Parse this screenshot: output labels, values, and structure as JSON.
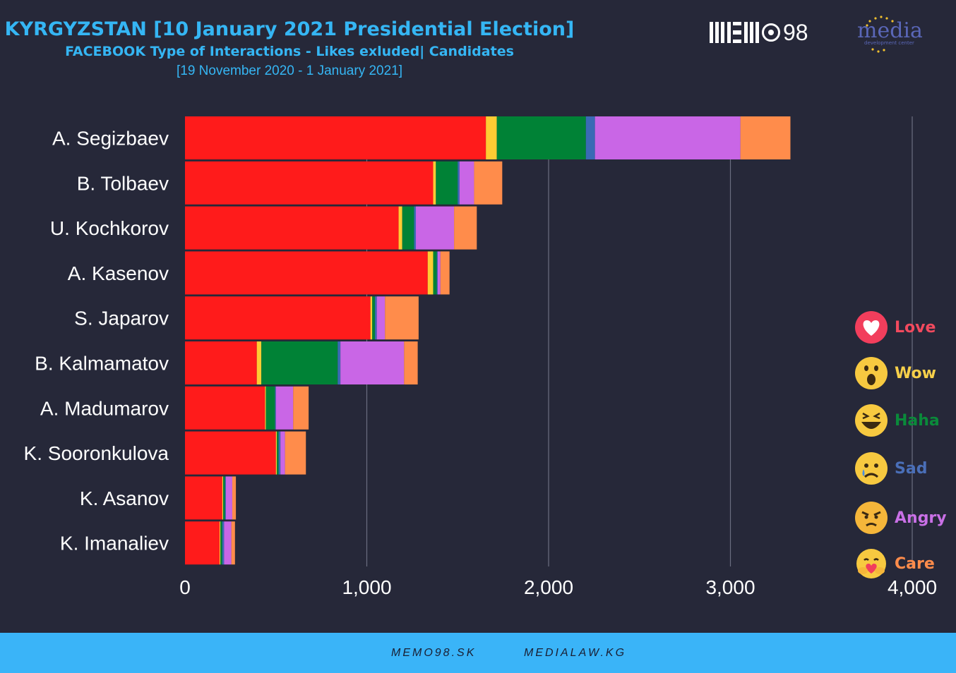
{
  "header": {
    "title": "KYRGYZSTAN [10 January 2021 Presidential Election]",
    "subtitle": "FACEBOOK Type of Interactions - Likes exluded| Candidates",
    "date_range": "[19 November 2020 - 1 January 2021]"
  },
  "logos": {
    "memo_text": "98",
    "media_text": "media",
    "media_sub": "development center"
  },
  "footer": {
    "link1": "MEMO98.SK",
    "link2": "MEDIALAW.KG"
  },
  "colors": {
    "background": "#262839",
    "title": "#35b6f4",
    "grid": "#6b6e80"
  },
  "chart_data": {
    "type": "bar",
    "orientation": "horizontal",
    "stacked": true,
    "xlim": [
      0,
      4000
    ],
    "x_ticks": [
      "0",
      "1,000",
      "2,000",
      "3,000",
      "4,000"
    ],
    "x_tick_values": [
      0,
      1000,
      2000,
      3000,
      4000
    ],
    "grid": true,
    "legend_position": "right",
    "categories": [
      "A. Segizbaev",
      "B. Tolbaev",
      "U. Kochkorov",
      "A. Kasenov",
      "S. Japarov",
      "B. Kalmamatov",
      "A. Madumarov",
      "K. Sooronkulova",
      "K. Asanov",
      "K. Imanaliev"
    ],
    "series": [
      {
        "name": "Love",
        "color": "#ff1b1b",
        "values": [
          1655,
          1365,
          1175,
          1335,
          1020,
          395,
          440,
          500,
          205,
          190
        ]
      },
      {
        "name": "Wow",
        "color": "#ffcc33",
        "values": [
          60,
          15,
          20,
          30,
          10,
          25,
          5,
          5,
          5,
          5
        ]
      },
      {
        "name": "Haha",
        "color": "#008236",
        "values": [
          490,
          120,
          65,
          20,
          15,
          420,
          50,
          10,
          10,
          10
        ]
      },
      {
        "name": "Sad",
        "color": "#3b6ab5",
        "values": [
          50,
          10,
          10,
          5,
          10,
          15,
          5,
          10,
          5,
          10
        ]
      },
      {
        "name": "Angry",
        "color": "#c966e6",
        "values": [
          800,
          80,
          210,
          15,
          45,
          350,
          95,
          25,
          35,
          40
        ]
      },
      {
        "name": "Care",
        "color": "#ff8c4b",
        "values": [
          275,
          155,
          125,
          50,
          185,
          75,
          85,
          115,
          20,
          20
        ]
      }
    ]
  }
}
